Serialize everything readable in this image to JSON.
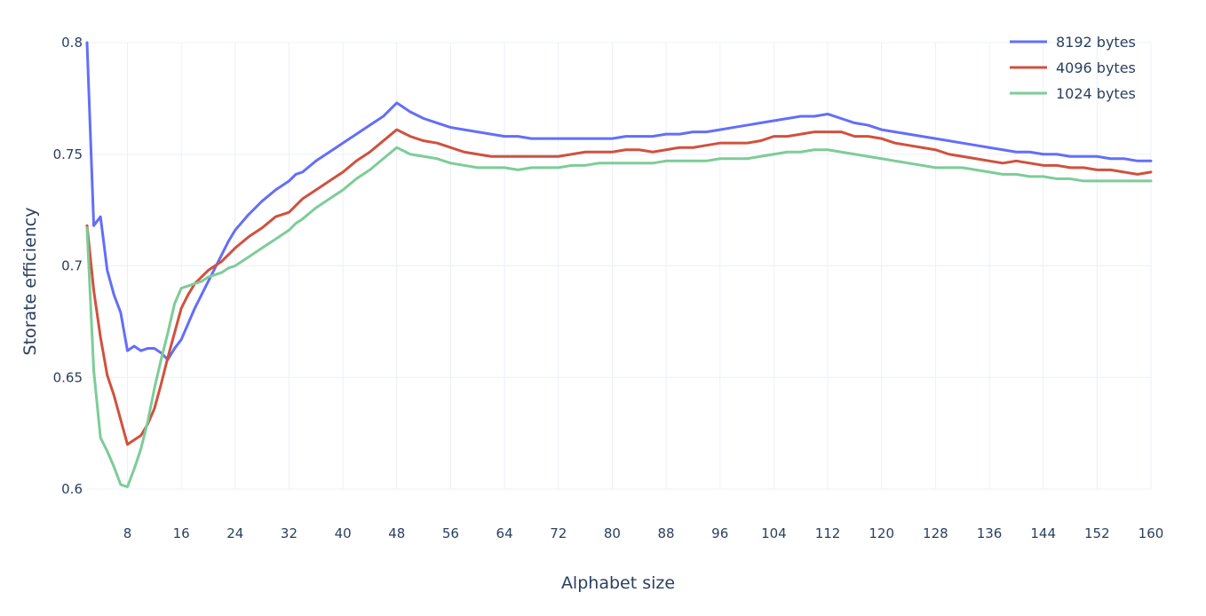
{
  "chart_data": {
    "type": "line",
    "title": "",
    "xlabel": "Alphabet size",
    "ylabel": "Storate efficiency",
    "xlim": [
      2,
      160
    ],
    "ylim": [
      0.6,
      0.8
    ],
    "x_ticks": [
      8,
      16,
      24,
      32,
      40,
      48,
      56,
      64,
      72,
      80,
      88,
      96,
      104,
      112,
      120,
      128,
      136,
      144,
      152,
      160
    ],
    "y_ticks": [
      0.6,
      0.65,
      0.7,
      0.75,
      0.8
    ],
    "y_tick_labels": [
      "0.6",
      "0.65",
      "0.7",
      "0.75",
      "0.8"
    ],
    "grid": true,
    "legend_position": "top-right",
    "series": [
      {
        "name": "8192 bytes",
        "color": "#636efa",
        "points": [
          [
            2,
            0.8
          ],
          [
            3,
            0.718
          ],
          [
            4,
            0.722
          ],
          [
            5,
            0.698
          ],
          [
            6,
            0.687
          ],
          [
            7,
            0.679
          ],
          [
            8,
            0.662
          ],
          [
            9,
            0.664
          ],
          [
            10,
            0.662
          ],
          [
            11,
            0.663
          ],
          [
            12,
            0.663
          ],
          [
            13,
            0.661
          ],
          [
            14,
            0.658
          ],
          [
            15,
            0.663
          ],
          [
            16,
            0.667
          ],
          [
            17,
            0.674
          ],
          [
            18,
            0.681
          ],
          [
            19,
            0.687
          ],
          [
            20,
            0.693
          ],
          [
            21,
            0.699
          ],
          [
            22,
            0.705
          ],
          [
            23,
            0.711
          ],
          [
            24,
            0.716
          ],
          [
            26,
            0.723
          ],
          [
            28,
            0.729
          ],
          [
            30,
            0.734
          ],
          [
            32,
            0.738
          ],
          [
            33,
            0.741
          ],
          [
            34,
            0.742
          ],
          [
            36,
            0.747
          ],
          [
            38,
            0.751
          ],
          [
            40,
            0.755
          ],
          [
            42,
            0.759
          ],
          [
            44,
            0.763
          ],
          [
            46,
            0.767
          ],
          [
            48,
            0.773
          ],
          [
            50,
            0.769
          ],
          [
            52,
            0.766
          ],
          [
            54,
            0.764
          ],
          [
            56,
            0.762
          ],
          [
            58,
            0.761
          ],
          [
            60,
            0.76
          ],
          [
            62,
            0.759
          ],
          [
            64,
            0.758
          ],
          [
            66,
            0.758
          ],
          [
            68,
            0.757
          ],
          [
            70,
            0.757
          ],
          [
            72,
            0.757
          ],
          [
            74,
            0.757
          ],
          [
            76,
            0.757
          ],
          [
            78,
            0.757
          ],
          [
            80,
            0.757
          ],
          [
            82,
            0.758
          ],
          [
            84,
            0.758
          ],
          [
            86,
            0.758
          ],
          [
            88,
            0.759
          ],
          [
            90,
            0.759
          ],
          [
            92,
            0.76
          ],
          [
            94,
            0.76
          ],
          [
            96,
            0.761
          ],
          [
            98,
            0.762
          ],
          [
            100,
            0.763
          ],
          [
            102,
            0.764
          ],
          [
            104,
            0.765
          ],
          [
            106,
            0.766
          ],
          [
            108,
            0.767
          ],
          [
            110,
            0.767
          ],
          [
            112,
            0.768
          ],
          [
            114,
            0.766
          ],
          [
            116,
            0.764
          ],
          [
            118,
            0.763
          ],
          [
            120,
            0.761
          ],
          [
            122,
            0.76
          ],
          [
            124,
            0.759
          ],
          [
            126,
            0.758
          ],
          [
            128,
            0.757
          ],
          [
            130,
            0.756
          ],
          [
            132,
            0.755
          ],
          [
            134,
            0.754
          ],
          [
            136,
            0.753
          ],
          [
            138,
            0.752
          ],
          [
            140,
            0.751
          ],
          [
            142,
            0.751
          ],
          [
            144,
            0.75
          ],
          [
            146,
            0.75
          ],
          [
            148,
            0.749
          ],
          [
            150,
            0.749
          ],
          [
            152,
            0.749
          ],
          [
            154,
            0.748
          ],
          [
            156,
            0.748
          ],
          [
            158,
            0.747
          ],
          [
            160,
            0.747
          ]
        ]
      },
      {
        "name": "4096 bytes",
        "color": "#d0513e",
        "points": [
          [
            2,
            0.718
          ],
          [
            3,
            0.689
          ],
          [
            4,
            0.668
          ],
          [
            5,
            0.651
          ],
          [
            6,
            0.642
          ],
          [
            7,
            0.631
          ],
          [
            8,
            0.62
          ],
          [
            9,
            0.622
          ],
          [
            10,
            0.624
          ],
          [
            11,
            0.629
          ],
          [
            12,
            0.636
          ],
          [
            13,
            0.647
          ],
          [
            14,
            0.659
          ],
          [
            15,
            0.67
          ],
          [
            16,
            0.681
          ],
          [
            17,
            0.687
          ],
          [
            18,
            0.692
          ],
          [
            19,
            0.695
          ],
          [
            20,
            0.698
          ],
          [
            21,
            0.7
          ],
          [
            22,
            0.702
          ],
          [
            23,
            0.705
          ],
          [
            24,
            0.708
          ],
          [
            26,
            0.713
          ],
          [
            28,
            0.717
          ],
          [
            30,
            0.722
          ],
          [
            32,
            0.724
          ],
          [
            33,
            0.727
          ],
          [
            34,
            0.73
          ],
          [
            36,
            0.734
          ],
          [
            38,
            0.738
          ],
          [
            40,
            0.742
          ],
          [
            42,
            0.747
          ],
          [
            44,
            0.751
          ],
          [
            46,
            0.756
          ],
          [
            48,
            0.761
          ],
          [
            50,
            0.758
          ],
          [
            52,
            0.756
          ],
          [
            54,
            0.755
          ],
          [
            56,
            0.753
          ],
          [
            58,
            0.751
          ],
          [
            60,
            0.75
          ],
          [
            62,
            0.749
          ],
          [
            64,
            0.749
          ],
          [
            66,
            0.749
          ],
          [
            68,
            0.749
          ],
          [
            70,
            0.749
          ],
          [
            72,
            0.749
          ],
          [
            74,
            0.75
          ],
          [
            76,
            0.751
          ],
          [
            78,
            0.751
          ],
          [
            80,
            0.751
          ],
          [
            82,
            0.752
          ],
          [
            84,
            0.752
          ],
          [
            86,
            0.751
          ],
          [
            88,
            0.752
          ],
          [
            90,
            0.753
          ],
          [
            92,
            0.753
          ],
          [
            94,
            0.754
          ],
          [
            96,
            0.755
          ],
          [
            98,
            0.755
          ],
          [
            100,
            0.755
          ],
          [
            102,
            0.756
          ],
          [
            104,
            0.758
          ],
          [
            106,
            0.758
          ],
          [
            108,
            0.759
          ],
          [
            110,
            0.76
          ],
          [
            112,
            0.76
          ],
          [
            114,
            0.76
          ],
          [
            116,
            0.758
          ],
          [
            118,
            0.758
          ],
          [
            120,
            0.757
          ],
          [
            122,
            0.755
          ],
          [
            124,
            0.754
          ],
          [
            126,
            0.753
          ],
          [
            128,
            0.752
          ],
          [
            130,
            0.75
          ],
          [
            132,
            0.749
          ],
          [
            134,
            0.748
          ],
          [
            136,
            0.747
          ],
          [
            138,
            0.746
          ],
          [
            140,
            0.747
          ],
          [
            142,
            0.746
          ],
          [
            144,
            0.745
          ],
          [
            146,
            0.745
          ],
          [
            148,
            0.744
          ],
          [
            150,
            0.744
          ],
          [
            152,
            0.743
          ],
          [
            154,
            0.743
          ],
          [
            156,
            0.742
          ],
          [
            158,
            0.741
          ],
          [
            160,
            0.742
          ]
        ]
      },
      {
        "name": "1024 bytes",
        "color": "#7dcc98",
        "points": [
          [
            2,
            0.717
          ],
          [
            3,
            0.653
          ],
          [
            4,
            0.623
          ],
          [
            5,
            0.617
          ],
          [
            6,
            0.61
          ],
          [
            7,
            0.602
          ],
          [
            8,
            0.601
          ],
          [
            9,
            0.609
          ],
          [
            10,
            0.618
          ],
          [
            11,
            0.63
          ],
          [
            12,
            0.645
          ],
          [
            13,
            0.658
          ],
          [
            14,
            0.67
          ],
          [
            15,
            0.683
          ],
          [
            16,
            0.69
          ],
          [
            17,
            0.691
          ],
          [
            18,
            0.692
          ],
          [
            19,
            0.693
          ],
          [
            20,
            0.695
          ],
          [
            21,
            0.696
          ],
          [
            22,
            0.697
          ],
          [
            23,
            0.699
          ],
          [
            24,
            0.7
          ],
          [
            26,
            0.704
          ],
          [
            28,
            0.708
          ],
          [
            30,
            0.712
          ],
          [
            32,
            0.716
          ],
          [
            33,
            0.719
          ],
          [
            34,
            0.721
          ],
          [
            36,
            0.726
          ],
          [
            38,
            0.73
          ],
          [
            40,
            0.734
          ],
          [
            42,
            0.739
          ],
          [
            44,
            0.743
          ],
          [
            46,
            0.748
          ],
          [
            48,
            0.753
          ],
          [
            50,
            0.75
          ],
          [
            52,
            0.749
          ],
          [
            54,
            0.748
          ],
          [
            56,
            0.746
          ],
          [
            58,
            0.745
          ],
          [
            60,
            0.744
          ],
          [
            62,
            0.744
          ],
          [
            64,
            0.744
          ],
          [
            66,
            0.743
          ],
          [
            68,
            0.744
          ],
          [
            70,
            0.744
          ],
          [
            72,
            0.744
          ],
          [
            74,
            0.745
          ],
          [
            76,
            0.745
          ],
          [
            78,
            0.746
          ],
          [
            80,
            0.746
          ],
          [
            82,
            0.746
          ],
          [
            84,
            0.746
          ],
          [
            86,
            0.746
          ],
          [
            88,
            0.747
          ],
          [
            90,
            0.747
          ],
          [
            92,
            0.747
          ],
          [
            94,
            0.747
          ],
          [
            96,
            0.748
          ],
          [
            98,
            0.748
          ],
          [
            100,
            0.748
          ],
          [
            102,
            0.749
          ],
          [
            104,
            0.75
          ],
          [
            106,
            0.751
          ],
          [
            108,
            0.751
          ],
          [
            110,
            0.752
          ],
          [
            112,
            0.752
          ],
          [
            114,
            0.751
          ],
          [
            116,
            0.75
          ],
          [
            118,
            0.749
          ],
          [
            120,
            0.748
          ],
          [
            122,
            0.747
          ],
          [
            124,
            0.746
          ],
          [
            126,
            0.745
          ],
          [
            128,
            0.744
          ],
          [
            130,
            0.744
          ],
          [
            132,
            0.744
          ],
          [
            134,
            0.743
          ],
          [
            136,
            0.742
          ],
          [
            138,
            0.741
          ],
          [
            140,
            0.741
          ],
          [
            142,
            0.74
          ],
          [
            144,
            0.74
          ],
          [
            146,
            0.739
          ],
          [
            148,
            0.739
          ],
          [
            150,
            0.738
          ],
          [
            152,
            0.738
          ],
          [
            154,
            0.738
          ],
          [
            156,
            0.738
          ],
          [
            158,
            0.738
          ],
          [
            160,
            0.738
          ]
        ]
      }
    ]
  }
}
